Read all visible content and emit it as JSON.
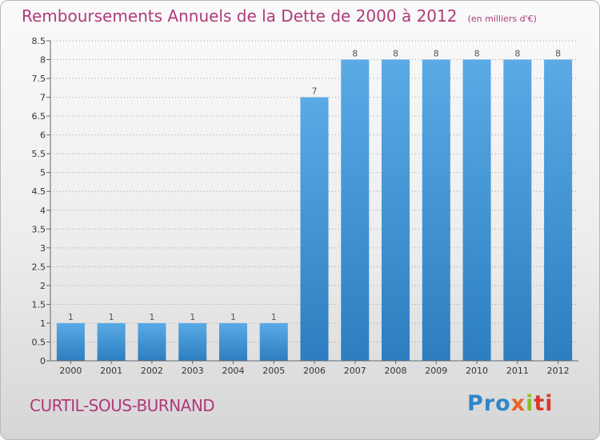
{
  "chart_data": {
    "type": "bar",
    "title": "Remboursements Annuels de la Dette de 2000 à 2012",
    "subtitle": "(en milliers d'€)",
    "xlabel": "",
    "ylabel": "",
    "categories": [
      "2000",
      "2001",
      "2002",
      "2003",
      "2004",
      "2005",
      "2006",
      "2007",
      "2008",
      "2009",
      "2010",
      "2011",
      "2012"
    ],
    "values": [
      1,
      1,
      1,
      1,
      1,
      1,
      7,
      8,
      8,
      8,
      8,
      8,
      8
    ],
    "data_labels": [
      "1",
      "1",
      "1",
      "1",
      "1",
      "1",
      "7",
      "8",
      "8",
      "8",
      "8",
      "8",
      "8"
    ],
    "ylim": [
      0,
      8.5
    ],
    "yticks": [
      0,
      0.5,
      1,
      1.5,
      2,
      2.5,
      3,
      3.5,
      4,
      4.5,
      5,
      5.5,
      6,
      6.5,
      7,
      7.5,
      8,
      8.5
    ],
    "ytick_labels": [
      "0",
      "0.5",
      "1",
      "1.5",
      "2",
      "2.5",
      "3",
      "3.5",
      "4",
      "4.5",
      "5",
      "5.5",
      "6",
      "6.5",
      "7",
      "7.5",
      "8",
      "8.5"
    ],
    "grid": true,
    "colors": {
      "bar_top": "#5aaae6",
      "bar_bottom": "#2d7ec0",
      "grid": "#9a9a9a"
    }
  },
  "footer": {
    "commune": "CURTIL-SOUS-BURNAND",
    "logo": {
      "p1": "Pro",
      "p2": "x",
      "p3": "i",
      "p4": "ti"
    }
  }
}
